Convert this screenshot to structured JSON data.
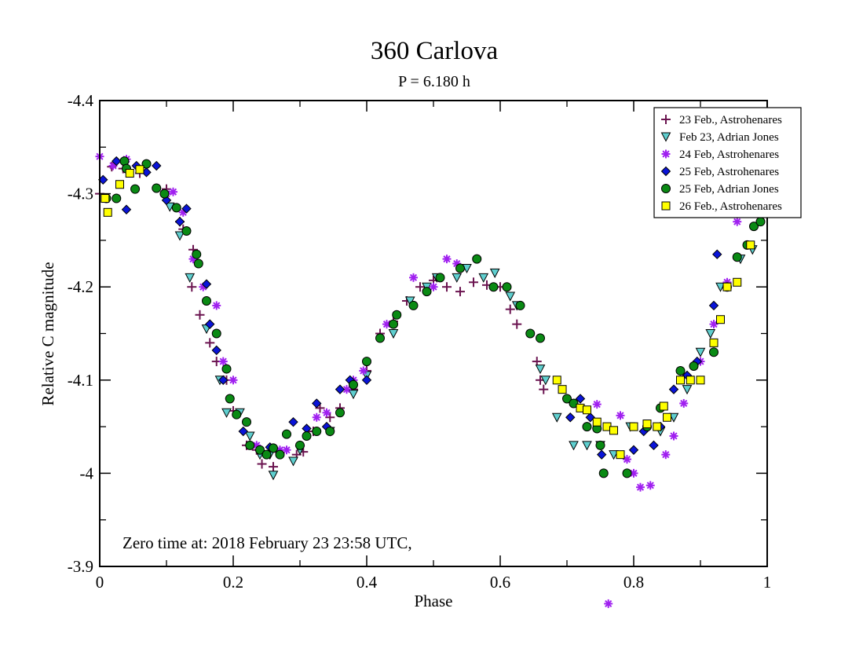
{
  "chart_data": {
    "type": "scatter",
    "title": "360 Carlova",
    "subtitle": "P = 6.180 h",
    "xlabel": "Phase",
    "ylabel": "Relative C magnitude",
    "xlim": [
      0,
      1
    ],
    "ylim": [
      -4.4,
      -3.9
    ],
    "y_inverted": true,
    "grid": false,
    "x_ticks": [
      0,
      0.2,
      0.4,
      0.6,
      0.8,
      1
    ],
    "x_tick_labels": [
      "0",
      "0.2",
      "0.4",
      "0.6",
      "0.8",
      "1"
    ],
    "x_minor_ticks": [
      0.1,
      0.3,
      0.5,
      0.7,
      0.9
    ],
    "y_ticks": [
      -4.4,
      -4.3,
      -4.2,
      -4.1,
      -4.0,
      -3.9
    ],
    "y_tick_labels": [
      "-4.4",
      "-4.3",
      "-4.2",
      "-4.1",
      "-4",
      "-3.9"
    ],
    "y_minor_ticks": [
      -4.35,
      -4.25,
      -4.15,
      -4.05,
      -3.95
    ],
    "legend_position": "top-right",
    "annotation": "Zero time at: 2018 February 23  23:58 UTC,",
    "series": [
      {
        "name": "23 Feb., Astrohenares",
        "marker": "plus",
        "color": "#6b1450",
        "points": [
          [
            0.0,
            -4.3
          ],
          [
            0.018,
            -4.329
          ],
          [
            0.035,
            -4.327
          ],
          [
            0.06,
            -4.322
          ],
          [
            0.1,
            -4.305
          ],
          [
            0.125,
            -4.262
          ],
          [
            0.14,
            -4.24
          ],
          [
            0.12,
            -4.27
          ],
          [
            0.138,
            -4.2
          ],
          [
            0.15,
            -4.17
          ],
          [
            0.165,
            -4.14
          ],
          [
            0.175,
            -4.12
          ],
          [
            0.19,
            -4.1
          ],
          [
            0.2,
            -4.067
          ],
          [
            0.22,
            -4.03
          ],
          [
            0.235,
            -4.025
          ],
          [
            0.243,
            -4.01
          ],
          [
            0.26,
            -4.007
          ],
          [
            0.27,
            -4.022
          ],
          [
            0.295,
            -4.02
          ],
          [
            0.305,
            -4.023
          ],
          [
            0.32,
            -4.045
          ],
          [
            0.33,
            -4.07
          ],
          [
            0.345,
            -4.06
          ],
          [
            0.36,
            -4.07
          ],
          [
            0.38,
            -4.09
          ],
          [
            0.4,
            -4.11
          ],
          [
            0.42,
            -4.15
          ],
          [
            0.44,
            -4.163
          ],
          [
            0.46,
            -4.185
          ],
          [
            0.48,
            -4.2
          ],
          [
            0.5,
            -4.207
          ],
          [
            0.52,
            -4.2
          ],
          [
            0.54,
            -4.195
          ],
          [
            0.56,
            -4.205
          ],
          [
            0.58,
            -4.202
          ],
          [
            0.6,
            -4.2
          ],
          [
            0.615,
            -4.176
          ],
          [
            0.625,
            -4.16
          ],
          [
            0.655,
            -4.12
          ],
          [
            0.66,
            -4.1
          ],
          [
            0.665,
            -4.09
          ]
        ]
      },
      {
        "name": "Feb 23, Adrian Jones",
        "marker": "triangle-down",
        "color": "#5fcfcf",
        "points": [
          [
            0.105,
            -4.286
          ],
          [
            0.12,
            -4.255
          ],
          [
            0.135,
            -4.21
          ],
          [
            0.16,
            -4.155
          ],
          [
            0.18,
            -4.1
          ],
          [
            0.19,
            -4.065
          ],
          [
            0.21,
            -4.065
          ],
          [
            0.225,
            -4.04
          ],
          [
            0.24,
            -4.02
          ],
          [
            0.255,
            -4.02
          ],
          [
            0.26,
            -3.998
          ],
          [
            0.29,
            -4.013
          ],
          [
            0.3,
            -4.025
          ],
          [
            0.345,
            -4.045
          ],
          [
            0.38,
            -4.085
          ],
          [
            0.4,
            -4.105
          ],
          [
            0.44,
            -4.15
          ],
          [
            0.465,
            -4.185
          ],
          [
            0.49,
            -4.2
          ],
          [
            0.505,
            -4.21
          ],
          [
            0.535,
            -4.21
          ],
          [
            0.55,
            -4.22
          ],
          [
            0.575,
            -4.21
          ],
          [
            0.592,
            -4.215
          ],
          [
            0.615,
            -4.19
          ],
          [
            0.625,
            -4.18
          ],
          [
            0.66,
            -4.112
          ],
          [
            0.668,
            -4.1
          ],
          [
            0.685,
            -4.06
          ],
          [
            0.71,
            -4.03
          ],
          [
            0.73,
            -4.03
          ],
          [
            0.75,
            -4.03
          ],
          [
            0.77,
            -4.02
          ],
          [
            0.795,
            -4.05
          ],
          [
            0.84,
            -4.045
          ],
          [
            0.86,
            -4.06
          ],
          [
            0.88,
            -4.09
          ],
          [
            0.9,
            -4.13
          ],
          [
            0.915,
            -4.15
          ],
          [
            0.93,
            -4.2
          ],
          [
            0.96,
            -4.23
          ],
          [
            0.978,
            -4.24
          ]
        ]
      },
      {
        "name": "24 Feb, Astrohenares",
        "marker": "asterisk",
        "color": "#a020f0",
        "points": [
          [
            0.0,
            -4.34
          ],
          [
            0.02,
            -4.33
          ],
          [
            0.04,
            -4.337
          ],
          [
            0.1,
            -4.3
          ],
          [
            0.11,
            -4.302
          ],
          [
            0.125,
            -4.28
          ],
          [
            0.14,
            -4.23
          ],
          [
            0.155,
            -4.2
          ],
          [
            0.175,
            -4.18
          ],
          [
            0.185,
            -4.12
          ],
          [
            0.2,
            -4.1
          ],
          [
            0.235,
            -4.03
          ],
          [
            0.27,
            -4.025
          ],
          [
            0.28,
            -4.025
          ],
          [
            0.3,
            -4.03
          ],
          [
            0.325,
            -4.06
          ],
          [
            0.34,
            -4.065
          ],
          [
            0.37,
            -4.09
          ],
          [
            0.38,
            -4.1
          ],
          [
            0.395,
            -4.11
          ],
          [
            0.43,
            -4.16
          ],
          [
            0.47,
            -4.21
          ],
          [
            0.5,
            -4.2
          ],
          [
            0.52,
            -4.23
          ],
          [
            0.535,
            -4.225
          ],
          [
            0.745,
            -4.074
          ],
          [
            0.762,
            -3.86
          ],
          [
            0.78,
            -4.062
          ],
          [
            0.79,
            -4.015
          ],
          [
            0.8,
            -4.0
          ],
          [
            0.81,
            -3.985
          ],
          [
            0.825,
            -3.987
          ],
          [
            0.848,
            -4.02
          ],
          [
            0.86,
            -4.04
          ],
          [
            0.875,
            -4.075
          ],
          [
            0.9,
            -4.12
          ],
          [
            0.92,
            -4.16
          ],
          [
            0.94,
            -4.205
          ],
          [
            0.955,
            -4.27
          ],
          [
            0.965,
            -4.3
          ]
        ]
      },
      {
        "name": "25 Feb, Astrohenares",
        "marker": "diamond",
        "color": "#0a14d8",
        "points": [
          [
            0.005,
            -4.315
          ],
          [
            0.025,
            -4.335
          ],
          [
            0.04,
            -4.283
          ],
          [
            0.055,
            -4.33
          ],
          [
            0.07,
            -4.323
          ],
          [
            0.085,
            -4.33
          ],
          [
            0.1,
            -4.293
          ],
          [
            0.12,
            -4.27
          ],
          [
            0.13,
            -4.284
          ],
          [
            0.16,
            -4.203
          ],
          [
            0.165,
            -4.16
          ],
          [
            0.175,
            -4.132
          ],
          [
            0.185,
            -4.1
          ],
          [
            0.215,
            -4.045
          ],
          [
            0.255,
            -4.028
          ],
          [
            0.29,
            -4.055
          ],
          [
            0.31,
            -4.048
          ],
          [
            0.325,
            -4.075
          ],
          [
            0.34,
            -4.05
          ],
          [
            0.36,
            -4.09
          ],
          [
            0.375,
            -4.1
          ],
          [
            0.4,
            -4.1
          ],
          [
            0.705,
            -4.06
          ],
          [
            0.72,
            -4.08
          ],
          [
            0.735,
            -4.06
          ],
          [
            0.752,
            -4.02
          ],
          [
            0.8,
            -4.025
          ],
          [
            0.815,
            -4.045
          ],
          [
            0.83,
            -4.03
          ],
          [
            0.84,
            -4.05
          ],
          [
            0.86,
            -4.09
          ],
          [
            0.88,
            -4.105
          ],
          [
            0.895,
            -4.12
          ],
          [
            0.92,
            -4.18
          ],
          [
            0.925,
            -4.235
          ],
          [
            0.945,
            -4.29
          ],
          [
            0.955,
            -4.323
          ]
        ]
      },
      {
        "name": "25 Feb, Adrian Jones",
        "marker": "circle",
        "color": "#0a8a14",
        "points": [
          [
            0.01,
            -4.295
          ],
          [
            0.025,
            -4.295
          ],
          [
            0.037,
            -4.335
          ],
          [
            0.04,
            -4.327
          ],
          [
            0.053,
            -4.305
          ],
          [
            0.07,
            -4.332
          ],
          [
            0.085,
            -4.306
          ],
          [
            0.097,
            -4.3
          ],
          [
            0.115,
            -4.285
          ],
          [
            0.13,
            -4.26
          ],
          [
            0.145,
            -4.235
          ],
          [
            0.148,
            -4.225
          ],
          [
            0.16,
            -4.185
          ],
          [
            0.175,
            -4.15
          ],
          [
            0.19,
            -4.112
          ],
          [
            0.195,
            -4.08
          ],
          [
            0.205,
            -4.063
          ],
          [
            0.22,
            -4.055
          ],
          [
            0.225,
            -4.03
          ],
          [
            0.24,
            -4.025
          ],
          [
            0.25,
            -4.02
          ],
          [
            0.26,
            -4.027
          ],
          [
            0.27,
            -4.02
          ],
          [
            0.28,
            -4.042
          ],
          [
            0.3,
            -4.03
          ],
          [
            0.31,
            -4.04
          ],
          [
            0.325,
            -4.045
          ],
          [
            0.345,
            -4.045
          ],
          [
            0.36,
            -4.065
          ],
          [
            0.38,
            -4.095
          ],
          [
            0.4,
            -4.12
          ],
          [
            0.42,
            -4.145
          ],
          [
            0.44,
            -4.16
          ],
          [
            0.445,
            -4.17
          ],
          [
            0.47,
            -4.18
          ],
          [
            0.49,
            -4.195
          ],
          [
            0.51,
            -4.21
          ],
          [
            0.54,
            -4.22
          ],
          [
            0.565,
            -4.23
          ],
          [
            0.59,
            -4.2
          ],
          [
            0.61,
            -4.2
          ],
          [
            0.63,
            -4.18
          ],
          [
            0.645,
            -4.15
          ],
          [
            0.66,
            -4.145
          ],
          [
            0.7,
            -4.08
          ],
          [
            0.71,
            -4.075
          ],
          [
            0.73,
            -4.05
          ],
          [
            0.745,
            -4.048
          ],
          [
            0.75,
            -4.03
          ],
          [
            0.755,
            -4.0
          ],
          [
            0.79,
            -4.0
          ],
          [
            0.82,
            -4.05
          ],
          [
            0.84,
            -4.07
          ],
          [
            0.87,
            -4.11
          ],
          [
            0.89,
            -4.115
          ],
          [
            0.92,
            -4.13
          ],
          [
            0.94,
            -4.2
          ],
          [
            0.955,
            -4.232
          ],
          [
            0.97,
            -4.245
          ],
          [
            0.98,
            -4.265
          ],
          [
            0.99,
            -4.27
          ]
        ]
      },
      {
        "name": "26 Feb., Astrohenares",
        "marker": "square",
        "color": "#ffff00",
        "points": [
          [
            0.008,
            -4.295
          ],
          [
            0.012,
            -4.28
          ],
          [
            0.03,
            -4.31
          ],
          [
            0.045,
            -4.322
          ],
          [
            0.06,
            -4.326
          ],
          [
            0.685,
            -4.1
          ],
          [
            0.693,
            -4.09
          ],
          [
            0.72,
            -4.07
          ],
          [
            0.73,
            -4.068
          ],
          [
            0.745,
            -4.055
          ],
          [
            0.76,
            -4.05
          ],
          [
            0.77,
            -4.046
          ],
          [
            0.78,
            -4.02
          ],
          [
            0.8,
            -4.05
          ],
          [
            0.82,
            -4.053
          ],
          [
            0.835,
            -4.05
          ],
          [
            0.845,
            -4.072
          ],
          [
            0.85,
            -4.06
          ],
          [
            0.87,
            -4.1
          ],
          [
            0.885,
            -4.1
          ],
          [
            0.9,
            -4.1
          ],
          [
            0.92,
            -4.14
          ],
          [
            0.93,
            -4.165
          ],
          [
            0.94,
            -4.2
          ],
          [
            0.955,
            -4.205
          ],
          [
            0.975,
            -4.245
          ]
        ]
      }
    ]
  }
}
